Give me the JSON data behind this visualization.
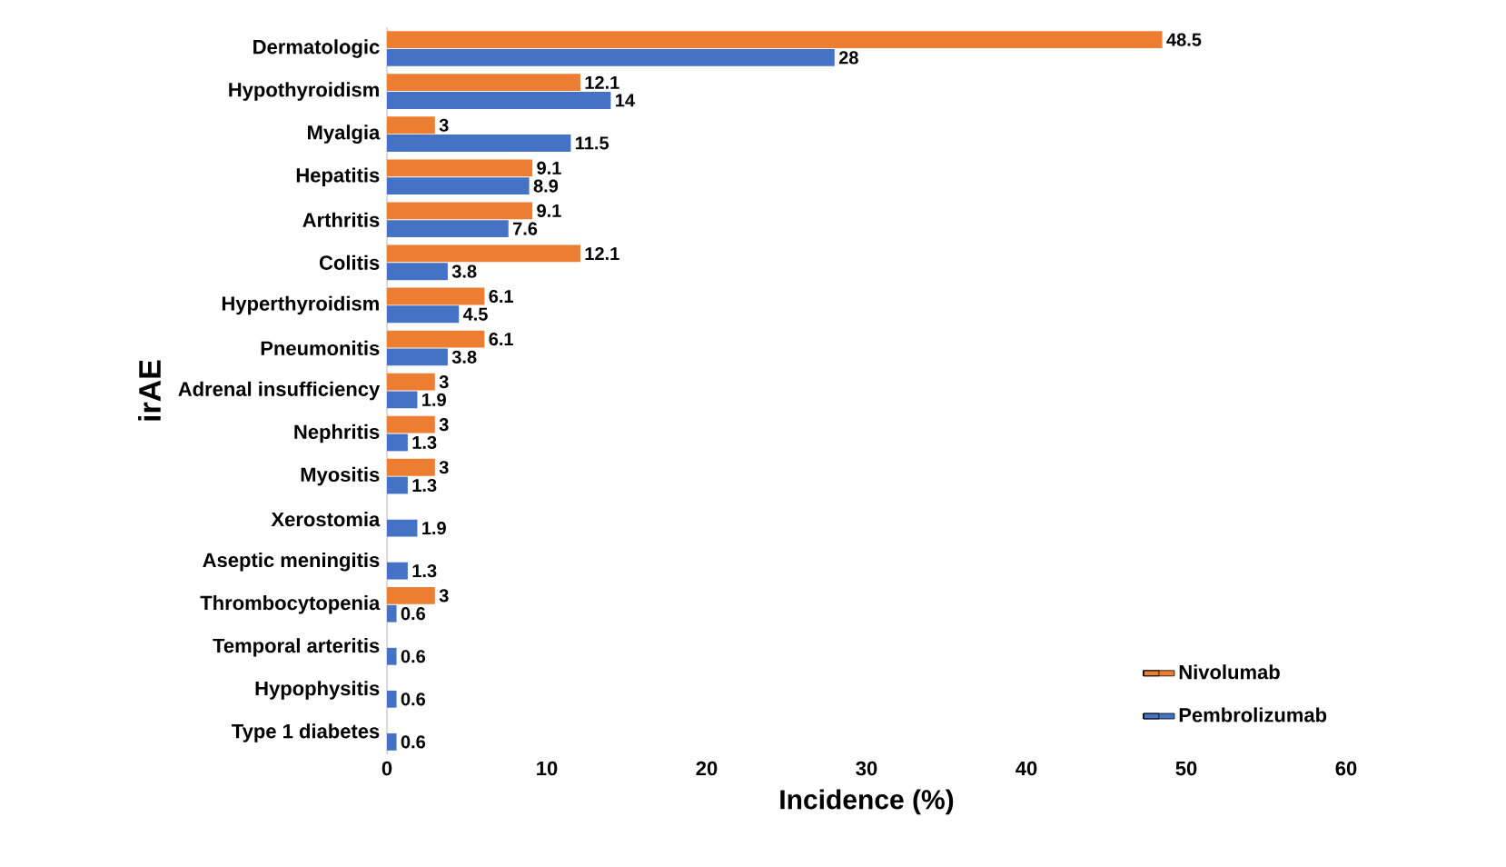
{
  "chart_data": {
    "type": "bar",
    "orientation": "horizontal",
    "xlabel": "Incidence (%)",
    "ylabel": "irAE",
    "categories": [
      "Dermatologic",
      "Hypothyroidism",
      "Myalgia",
      "Hepatitis",
      "Arthritis",
      "Colitis",
      "Hyperthyroidism",
      "Pneumonitis",
      "Adrenal insufficiency",
      "Nephritis",
      "Myositis",
      "Xerostomia",
      "Aseptic meningitis",
      "Thrombocytopenia",
      "Temporal arteritis",
      "Hypophysitis",
      "Type 1 diabetes"
    ],
    "series": [
      {
        "name": "Nivolumab",
        "color": "#ed7d31",
        "values": [
          48.5,
          12.1,
          3,
          9.1,
          9.1,
          12.1,
          6.1,
          6.1,
          3,
          3,
          3,
          null,
          null,
          3,
          null,
          null,
          null
        ]
      },
      {
        "name": "Pembrolizumab",
        "color": "#4472c4",
        "values": [
          28,
          14,
          11.5,
          8.9,
          7.6,
          3.8,
          4.5,
          3.8,
          1.9,
          1.3,
          1.3,
          1.9,
          1.3,
          0.6,
          0.6,
          0.6,
          0.6
        ]
      }
    ],
    "xlim": [
      0,
      60
    ],
    "xticks": [
      0,
      10,
      20,
      30,
      40,
      50,
      60
    ],
    "data_labels": true,
    "legend": "bottom right",
    "grid": false
  }
}
